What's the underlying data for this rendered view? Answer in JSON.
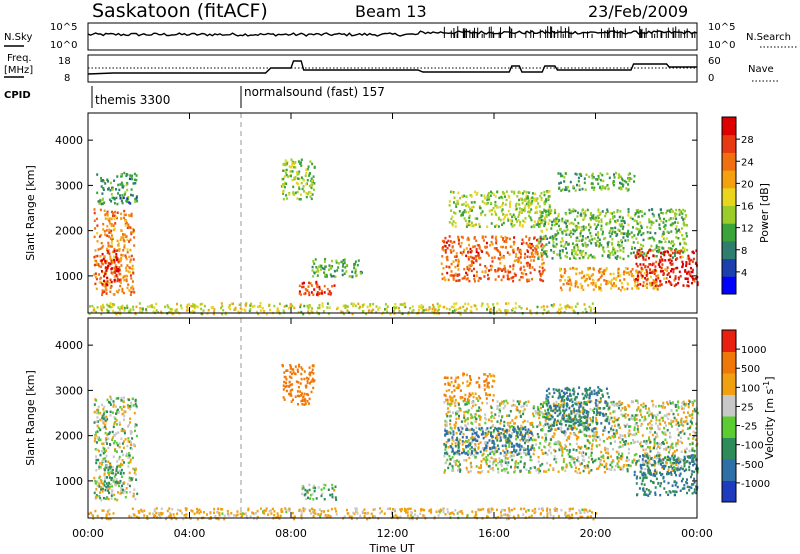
{
  "header": {
    "station": "Saskatoon (fitACF)",
    "beam": "Beam 13",
    "date": "23/Feb/2009"
  },
  "noise_panel": {
    "left_label": "N.Sky",
    "left_ticks": [
      "10^5",
      "10^0"
    ],
    "right_label": "N.Search",
    "right_ticks": [
      "10^5",
      "10^0"
    ]
  },
  "freq_panel": {
    "left_label_1": "Freq.",
    "left_label_2": "[MHz]",
    "left_ticks": [
      "18",
      "8"
    ],
    "right_label": "Nave",
    "right_ticks": [
      "60",
      "0"
    ]
  },
  "cpid": {
    "label": "CPID",
    "segments": [
      {
        "label": "themis 3300",
        "start_hour": 0
      },
      {
        "label": "normalsound (fast) 157",
        "start_hour": 6
      }
    ]
  },
  "time_axis": {
    "label": "Time UT",
    "ticks": [
      "00:00",
      "04:00",
      "08:00",
      "12:00",
      "16:00",
      "20:00",
      "00:00"
    ],
    "range_hours": [
      0,
      24
    ]
  },
  "chart_data": [
    {
      "type": "heatmap",
      "title": "Power",
      "ylabel": "Slant Range [km]",
      "ylim": [
        180,
        4600
      ],
      "y_ticks": [
        1000,
        2000,
        3000,
        4000
      ],
      "colorbar": {
        "label": "Power [dB]",
        "ticks": [
          "28",
          "24",
          "20",
          "16",
          "12",
          "8",
          "4"
        ],
        "range": [
          0,
          30
        ],
        "colors": [
          "#0000ff",
          "#1c3fae",
          "#2e7d6d",
          "#3aa33a",
          "#9bcd2a",
          "#e8d51c",
          "#f5a10f",
          "#f07010",
          "#e83a12",
          "#dd0000"
        ]
      },
      "regions": [
        {
          "t": [
            0.2,
            1.8
          ],
          "r": [
            600,
            2500
          ],
          "p": 20
        },
        {
          "t": [
            0.5,
            1.2
          ],
          "r": [
            800,
            1600
          ],
          "p": 27
        },
        {
          "t": [
            0.3,
            1.9
          ],
          "r": [
            2600,
            3300
          ],
          "p": 8
        },
        {
          "t": [
            8.3,
            9.7
          ],
          "r": [
            600,
            900
          ],
          "p": 24
        },
        {
          "t": [
            8.8,
            10.8
          ],
          "r": [
            1000,
            1400
          ],
          "p": 9
        },
        {
          "t": [
            7.6,
            8.9
          ],
          "r": [
            2700,
            3600
          ],
          "p": 12
        },
        {
          "t": [
            0.0,
            20.0
          ],
          "r": [
            180,
            420
          ],
          "p": 14
        },
        {
          "t": [
            13.9,
            18.0
          ],
          "r": [
            900,
            1900
          ],
          "p": 22
        },
        {
          "t": [
            14.2,
            18.2
          ],
          "r": [
            2100,
            2900
          ],
          "p": 12
        },
        {
          "t": [
            17.7,
            23.6
          ],
          "r": [
            1400,
            2500
          ],
          "p": 10
        },
        {
          "t": [
            18.5,
            22.8
          ],
          "r": [
            700,
            1200
          ],
          "p": 18
        },
        {
          "t": [
            21.5,
            24.0
          ],
          "r": [
            800,
            1600
          ],
          "p": 26
        },
        {
          "t": [
            18.5,
            21.5
          ],
          "r": [
            2900,
            3300
          ],
          "p": 9
        }
      ]
    },
    {
      "type": "heatmap",
      "title": "Velocity",
      "ylabel": "Slant Range [km]",
      "ylim": [
        180,
        4600
      ],
      "y_ticks": [
        1000,
        2000,
        3000,
        4000
      ],
      "colorbar": {
        "label": "Velocity [m s^-1]",
        "ticks": [
          "1000",
          "500",
          "100",
          "25",
          "-25",
          "-100",
          "-500",
          "-1000"
        ],
        "colors": [
          "#1f3bbd",
          "#2f6fa8",
          "#2e8b5a",
          "#5ccc33",
          "#c8c8c8",
          "#f0a010",
          "#f07808",
          "#e82010"
        ]
      },
      "regions": [
        {
          "t": [
            0.2,
            1.9
          ],
          "r": [
            600,
            2900
          ],
          "v": 25
        },
        {
          "t": [
            0.6,
            1.3
          ],
          "r": [
            800,
            1400
          ],
          "v": 100
        },
        {
          "t": [
            0.0,
            20.0
          ],
          "r": [
            180,
            420
          ],
          "v": -100
        },
        {
          "t": [
            8.4,
            9.8
          ],
          "r": [
            600,
            950
          ],
          "v": 100
        },
        {
          "t": [
            7.6,
            8.9
          ],
          "r": [
            2700,
            3600
          ],
          "v": -500
        },
        {
          "t": [
            14.0,
            24.0
          ],
          "r": [
            1200,
            2800
          ],
          "v": 0
        },
        {
          "t": [
            14.0,
            16.0
          ],
          "r": [
            2800,
            3400
          ],
          "v": -300
        },
        {
          "t": [
            18.0,
            20.5
          ],
          "r": [
            2100,
            3100
          ],
          "v": 300
        },
        {
          "t": [
            21.5,
            24.0
          ],
          "r": [
            700,
            1600
          ],
          "v": 300
        },
        {
          "t": [
            14.0,
            17.5
          ],
          "r": [
            1600,
            2200
          ],
          "v": 400
        }
      ]
    }
  ]
}
